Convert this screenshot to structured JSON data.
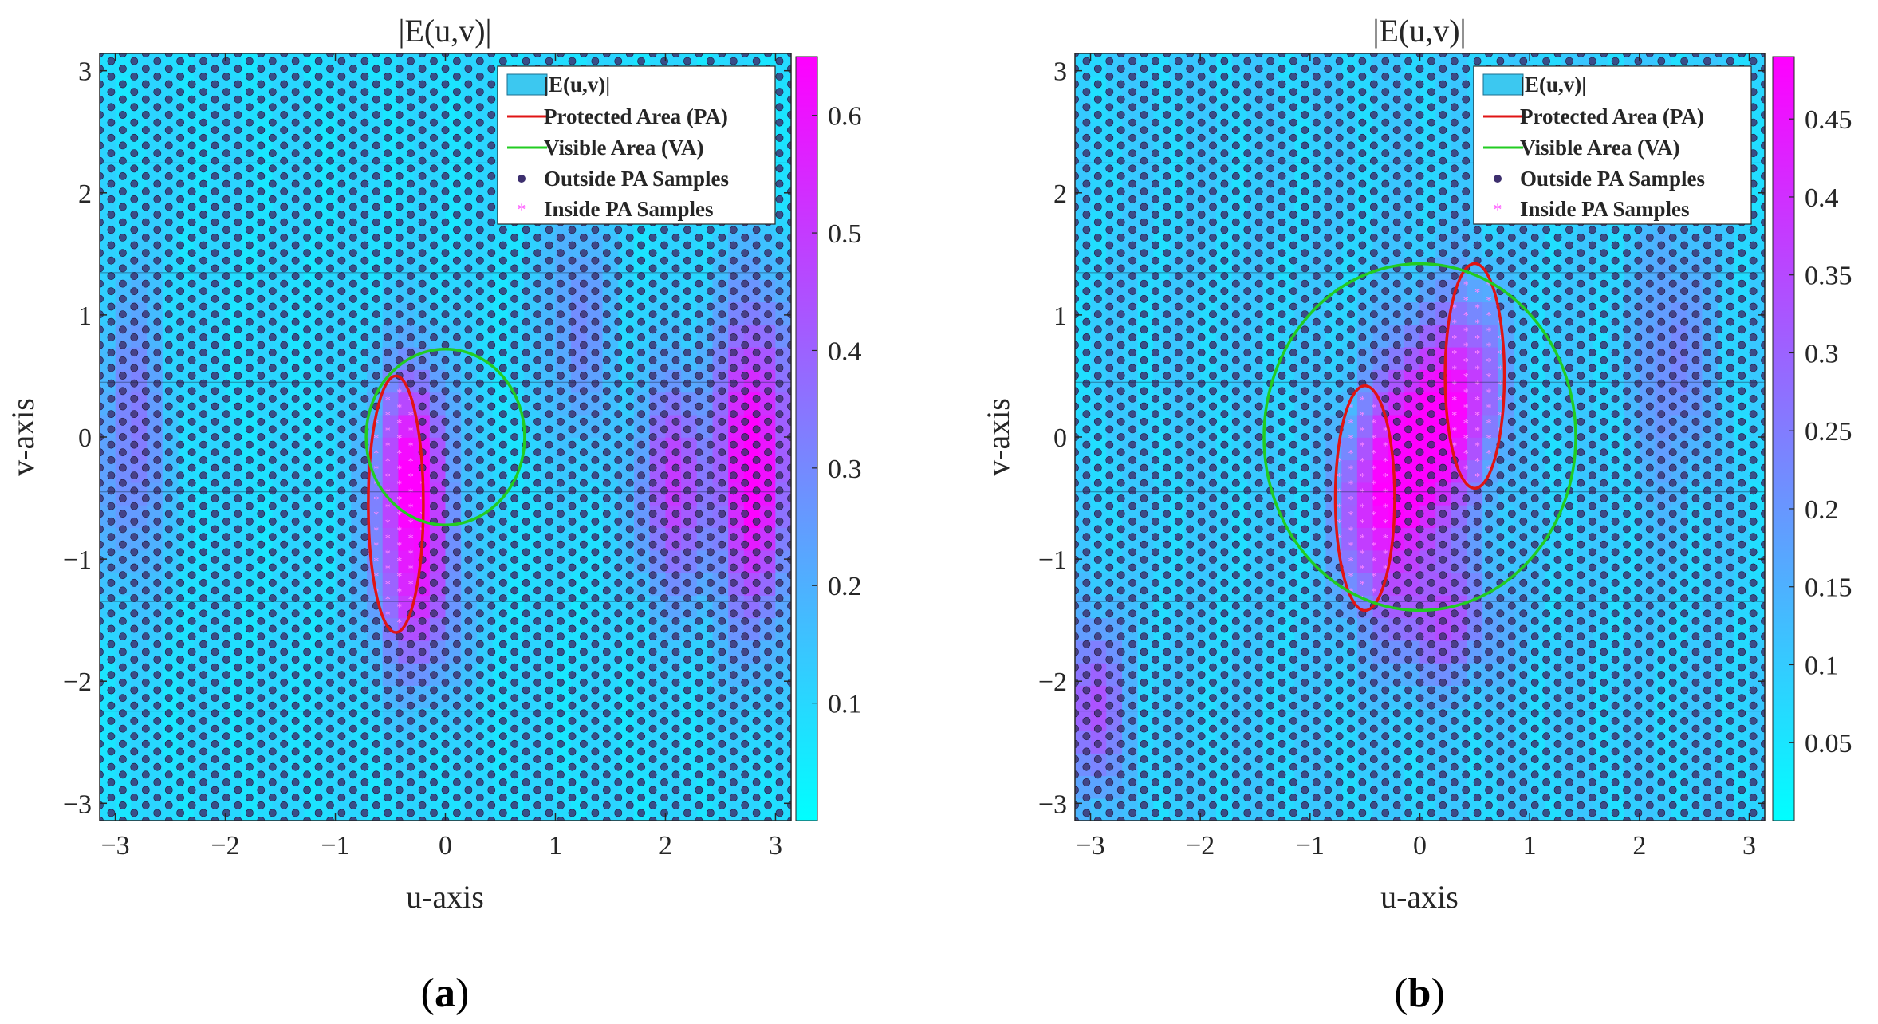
{
  "figure": {
    "panels": [
      {
        "id": "a",
        "caption_open": "(",
        "caption_letter": "a",
        "caption_close": ")",
        "colorbar": {
          "min": 0.0,
          "max": 0.65,
          "ticks": [
            0.1,
            0.2,
            0.3,
            0.4,
            0.5,
            0.6
          ],
          "tick_labels": [
            "0.1",
            "0.2",
            "0.3",
            "0.4",
            "0.5",
            "0.6"
          ]
        }
      },
      {
        "id": "b",
        "caption_open": "(",
        "caption_letter": "b",
        "caption_close": ")",
        "colorbar": {
          "min": 0.0,
          "max": 0.49,
          "ticks": [
            0.05,
            0.1,
            0.15,
            0.2,
            0.25,
            0.3,
            0.35,
            0.4,
            0.45
          ],
          "tick_labels": [
            "0.05",
            "0.1",
            "0.15",
            "0.2",
            "0.25",
            "0.3",
            "0.35",
            "0.4",
            "0.45"
          ]
        }
      }
    ]
  },
  "chart_data": [
    {
      "type": "heatmap",
      "title": "|E(u,v)|",
      "xlabel": "u-axis",
      "ylabel": "v-axis",
      "xlim": [
        -3.1416,
        3.1416
      ],
      "ylim": [
        -3.1416,
        3.1416
      ],
      "xticks": [
        -3,
        -2,
        -1,
        0,
        1,
        2,
        3
      ],
      "yticks": [
        -3,
        -2,
        -1,
        0,
        1,
        2,
        3
      ],
      "xtick_labels": [
        "−3",
        "−2",
        "−1",
        "0",
        "1",
        "2",
        "3"
      ],
      "ytick_labels": [
        "−3",
        "−2",
        "−1",
        "0",
        "1",
        "2",
        "3"
      ],
      "legend": {
        "location": "top-right",
        "entries": [
          {
            "label": "|E(u,v)|",
            "kind": "patch",
            "color": "#3cc8f0"
          },
          {
            "label": "Protected Area (PA)",
            "kind": "line",
            "color": "#e01414"
          },
          {
            "label": "Visible Area (VA)",
            "kind": "line",
            "color": "#22cc22"
          },
          {
            "label": "Outside PA Samples",
            "kind": "dot",
            "color": "#3d2f6e"
          },
          {
            "label": "Inside PA Samples",
            "kind": "star",
            "color": "#ff66ff"
          }
        ]
      },
      "colormap": [
        "#00ffff",
        "#ff00ff"
      ],
      "value_range": [
        0.0,
        0.65
      ],
      "protected_area": [
        {
          "center": [
            -0.45,
            -0.55
          ],
          "semi_axis_u": 0.25,
          "semi_axis_v": 1.05
        }
      ],
      "visible_area": {
        "center": [
          0.0,
          0.0
        ],
        "radius": 0.72
      },
      "hotspots": [
        {
          "u": -0.3,
          "v": -0.3,
          "su": 0.35,
          "sv": 0.9,
          "value": 0.55
        },
        {
          "u": 2.8,
          "v": -0.2,
          "su": 0.35,
          "sv": 1.3,
          "value": 0.6
        },
        {
          "u": 2.05,
          "v": -0.4,
          "su": 0.3,
          "sv": 0.9,
          "value": 0.4
        },
        {
          "u": -0.25,
          "v": -1.4,
          "su": 0.4,
          "sv": 0.7,
          "value": 0.3
        },
        {
          "u": -2.85,
          "v": 0.0,
          "su": 0.3,
          "sv": 1.2,
          "value": 0.25
        },
        {
          "u": 1.2,
          "v": 0.9,
          "su": 0.3,
          "sv": 1.0,
          "value": 0.2
        }
      ]
    },
    {
      "type": "heatmap",
      "title": "|E(u,v)|",
      "xlabel": "u-axis",
      "ylabel": "v-axis",
      "xlim": [
        -3.1416,
        3.1416
      ],
      "ylim": [
        -3.1416,
        3.1416
      ],
      "xticks": [
        -3,
        -2,
        -1,
        0,
        1,
        2,
        3
      ],
      "yticks": [
        -3,
        -2,
        -1,
        0,
        1,
        2,
        3
      ],
      "xtick_labels": [
        "−3",
        "−2",
        "−1",
        "0",
        "1",
        "2",
        "3"
      ],
      "ytick_labels": [
        "−3",
        "−2",
        "−1",
        "0",
        "1",
        "2",
        "3"
      ],
      "legend": {
        "location": "top-right",
        "entries": [
          {
            "label": "|E(u,v)|",
            "kind": "patch",
            "color": "#3cc8f0"
          },
          {
            "label": "Protected Area (PA)",
            "kind": "line",
            "color": "#e01414"
          },
          {
            "label": "Visible Area (VA)",
            "kind": "line",
            "color": "#22cc22"
          },
          {
            "label": "Outside PA Samples",
            "kind": "dot",
            "color": "#3d2f6e"
          },
          {
            "label": "Inside PA Samples",
            "kind": "star",
            "color": "#ff66ff"
          }
        ]
      },
      "colormap": [
        "#00ffff",
        "#ff00ff"
      ],
      "value_range": [
        0.0,
        0.49
      ],
      "protected_area": [
        {
          "center": [
            -0.5,
            -0.5
          ],
          "semi_axis_u": 0.27,
          "semi_axis_v": 0.92
        },
        {
          "center": [
            0.5,
            0.5
          ],
          "semi_axis_u": 0.27,
          "semi_axis_v": 0.92
        }
      ],
      "visible_area": {
        "center": [
          0.0,
          0.0
        ],
        "radius": 1.42
      },
      "hotspots": [
        {
          "u": 0.0,
          "v": -0.1,
          "su": 0.35,
          "sv": 0.9,
          "value": 0.45
        },
        {
          "u": -0.45,
          "v": -0.6,
          "su": 0.3,
          "sv": 0.8,
          "value": 0.3
        },
        {
          "u": 0.45,
          "v": 0.4,
          "su": 0.3,
          "sv": 0.8,
          "value": 0.28
        },
        {
          "u": -3.0,
          "v": -2.2,
          "su": 0.3,
          "sv": 0.7,
          "value": 0.25
        },
        {
          "u": 0.2,
          "v": -1.5,
          "su": 0.5,
          "sv": 0.5,
          "value": 0.22
        },
        {
          "u": 2.3,
          "v": 0.6,
          "su": 0.3,
          "sv": 1.0,
          "value": 0.15
        }
      ]
    }
  ]
}
